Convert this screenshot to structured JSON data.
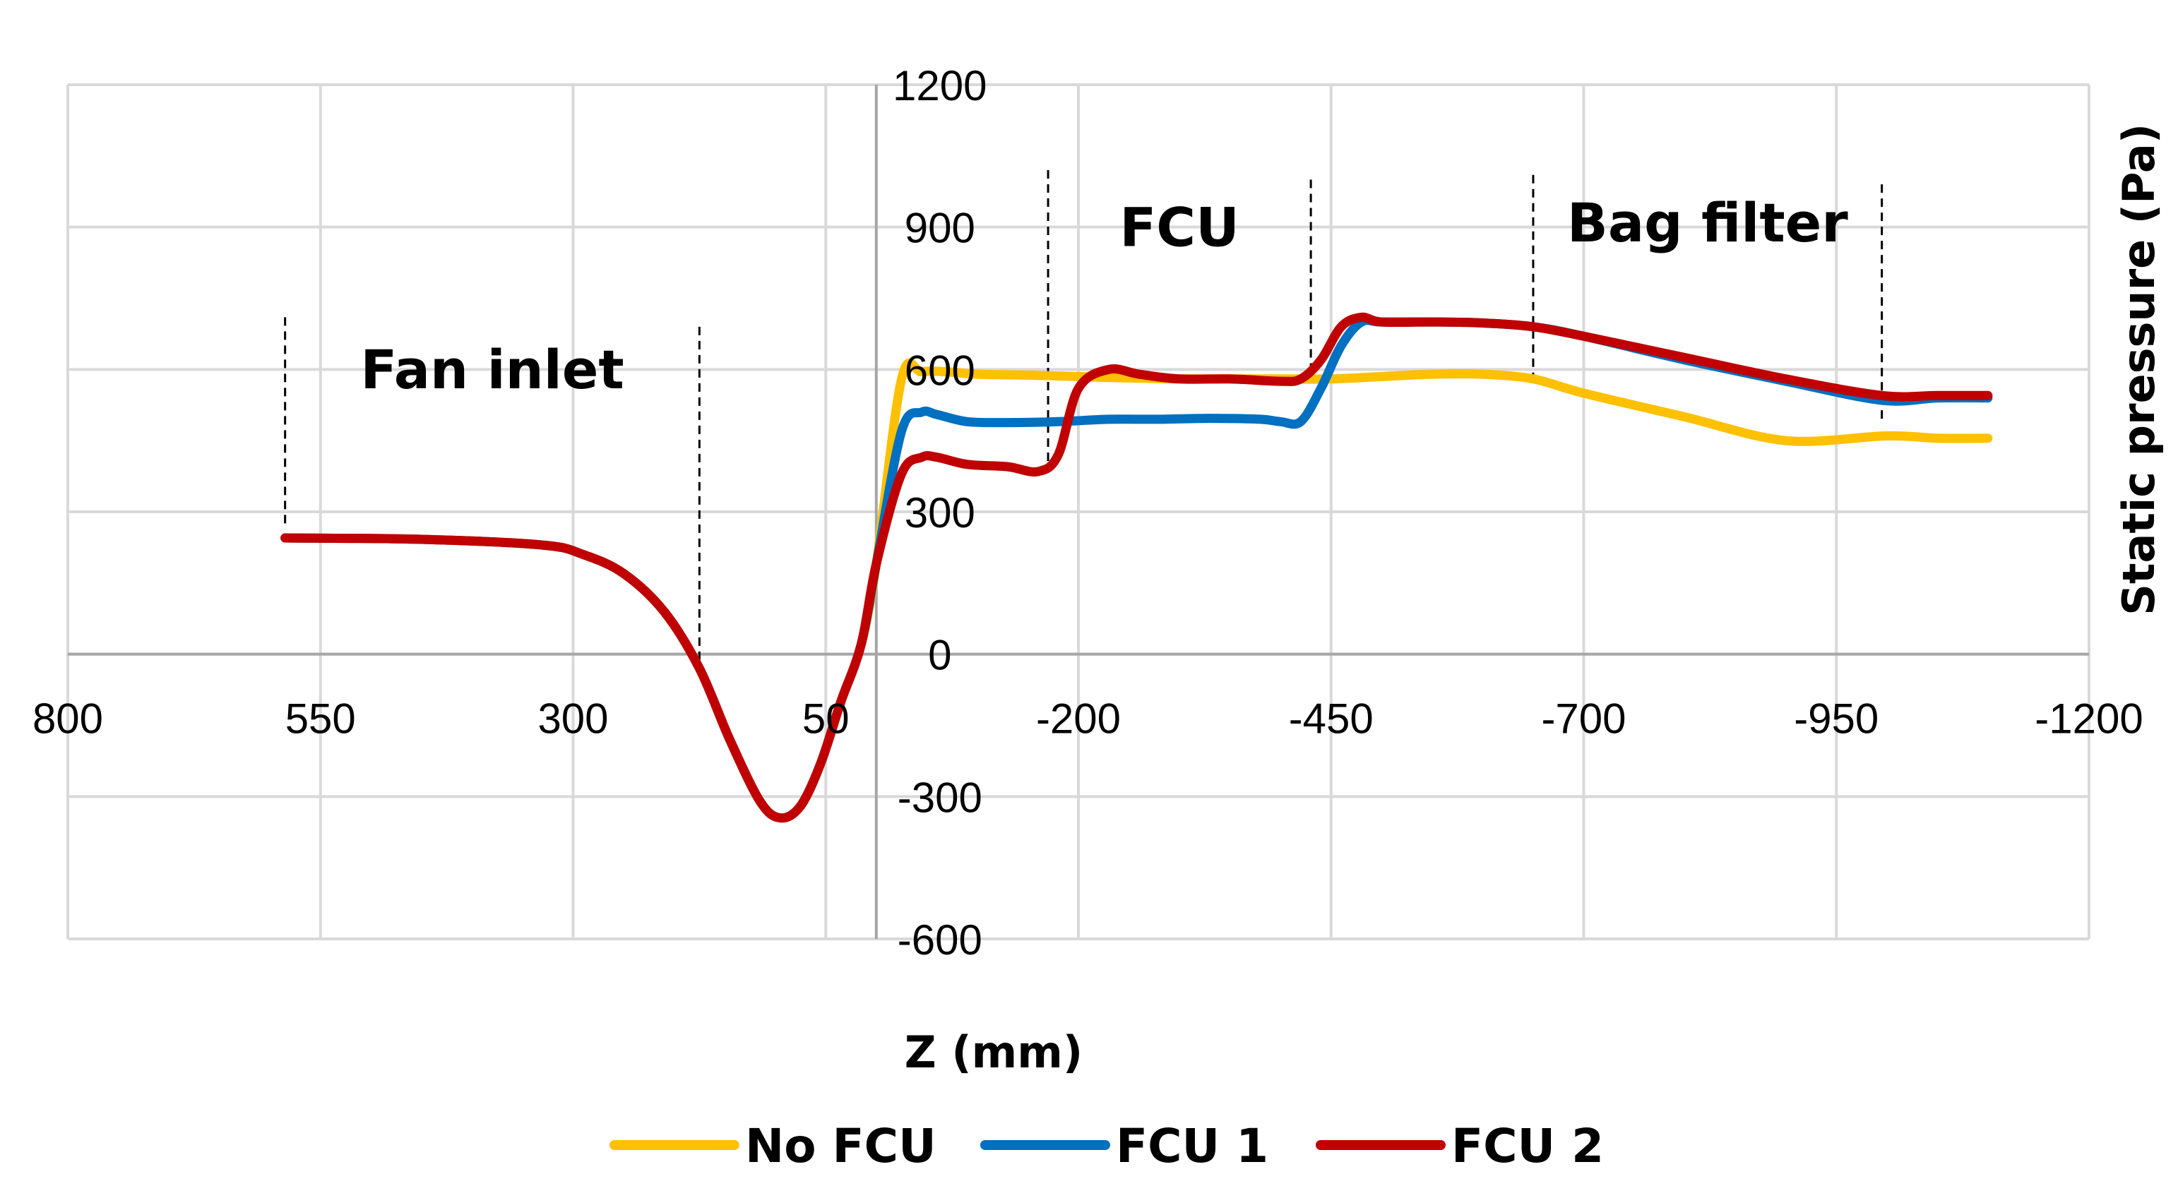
{
  "chart_data": {
    "type": "line",
    "xlabel": "Z (mm)",
    "ylabel": "Static pressure (Pa)",
    "xlim": [
      800,
      -1200
    ],
    "ylim": [
      -600,
      1200
    ],
    "x_reversed": true,
    "x_ticks": [
      800,
      550,
      300,
      50,
      -200,
      -450,
      -700,
      -950,
      -1200
    ],
    "x_tick_labels": [
      "800",
      "550",
      "300",
      "50",
      "-200",
      "-450",
      "-700",
      "-950",
      "-1200"
    ],
    "y_ticks": [
      -600,
      -300,
      0,
      300,
      600,
      900,
      1200
    ],
    "y_tick_labels": [
      "-600",
      "-300",
      "0",
      "300",
      "600",
      "900",
      "1200"
    ],
    "y_axis_crosses_at_x": 0,
    "grid": true,
    "legend_position": "bottom",
    "regions": [
      {
        "label": "Fan inlet",
        "from": 585,
        "to": 175
      },
      {
        "label": "FCU",
        "from": -170,
        "to": -430
      },
      {
        "label": "Bag filter",
        "from": -650,
        "to": -995
      }
    ],
    "boundary_lines": [
      {
        "x": 585,
        "y_top": 710,
        "y_bottom": 270
      },
      {
        "x": 175,
        "y_top": 690,
        "y_bottom": -30
      },
      {
        "x": -170,
        "y_top": 1020,
        "y_bottom": 400
      },
      {
        "x": -430,
        "y_top": 1000,
        "y_bottom": 570
      },
      {
        "x": -650,
        "y_top": 1010,
        "y_bottom": 580
      },
      {
        "x": -995,
        "y_top": 990,
        "y_bottom": 490
      }
    ],
    "series": [
      {
        "name": "No FCU",
        "color": "#FFC000",
        "x": [
          585,
          450,
          330,
          290,
          250,
          210,
          175,
          145,
          115,
          95,
          75,
          55,
          35,
          15,
          0,
          -25,
          -45,
          -70,
          -100,
          -150,
          -200,
          -250,
          -300,
          -350,
          -400,
          -450,
          -500,
          -550,
          -600,
          -650,
          -700,
          -800,
          -900,
          -1000,
          -1050,
          -1100
        ],
        "y": [
          245,
          242,
          230,
          210,
          170,
          90,
          -30,
          -180,
          -310,
          -345,
          -320,
          -230,
          -100,
          20,
          190,
          580,
          595,
          595,
          590,
          588,
          585,
          582,
          580,
          580,
          580,
          580,
          585,
          590,
          590,
          580,
          550,
          500,
          450,
          460,
          455,
          455
        ]
      },
      {
        "name": "FCU 1",
        "color": "#0070C0",
        "x": [
          585,
          450,
          330,
          290,
          250,
          210,
          175,
          145,
          115,
          95,
          75,
          55,
          35,
          15,
          0,
          -25,
          -45,
          -60,
          -90,
          -130,
          -180,
          -230,
          -280,
          -330,
          -380,
          -400,
          -420,
          -440,
          -460,
          -480,
          -500,
          -550,
          -600,
          -650,
          -700,
          -800,
          -900,
          -995,
          -1050,
          -1100
        ],
        "y": [
          245,
          242,
          230,
          210,
          170,
          90,
          -30,
          -180,
          -310,
          -345,
          -320,
          -230,
          -100,
          20,
          190,
          470,
          510,
          505,
          490,
          488,
          490,
          495,
          495,
          497,
          495,
          490,
          490,
          560,
          650,
          700,
          700,
          700,
          698,
          690,
          670,
          620,
          575,
          535,
          540,
          540
        ]
      },
      {
        "name": "FCU 2",
        "color": "#C00000",
        "x": [
          585,
          450,
          330,
          290,
          250,
          210,
          175,
          145,
          115,
          95,
          75,
          55,
          35,
          15,
          0,
          -25,
          -45,
          -60,
          -90,
          -130,
          -160,
          -180,
          -200,
          -230,
          -260,
          -300,
          -350,
          -400,
          -420,
          -440,
          -460,
          -480,
          -500,
          -550,
          -600,
          -650,
          -700,
          -800,
          -900,
          -995,
          -1050,
          -1100
        ],
        "y": [
          245,
          242,
          230,
          210,
          170,
          90,
          -30,
          -180,
          -310,
          -345,
          -320,
          -230,
          -100,
          20,
          190,
          380,
          415,
          415,
          400,
          395,
          385,
          420,
          560,
          600,
          590,
          580,
          580,
          575,
          580,
          620,
          690,
          710,
          700,
          700,
          698,
          690,
          670,
          625,
          580,
          545,
          545,
          545
        ]
      }
    ]
  }
}
